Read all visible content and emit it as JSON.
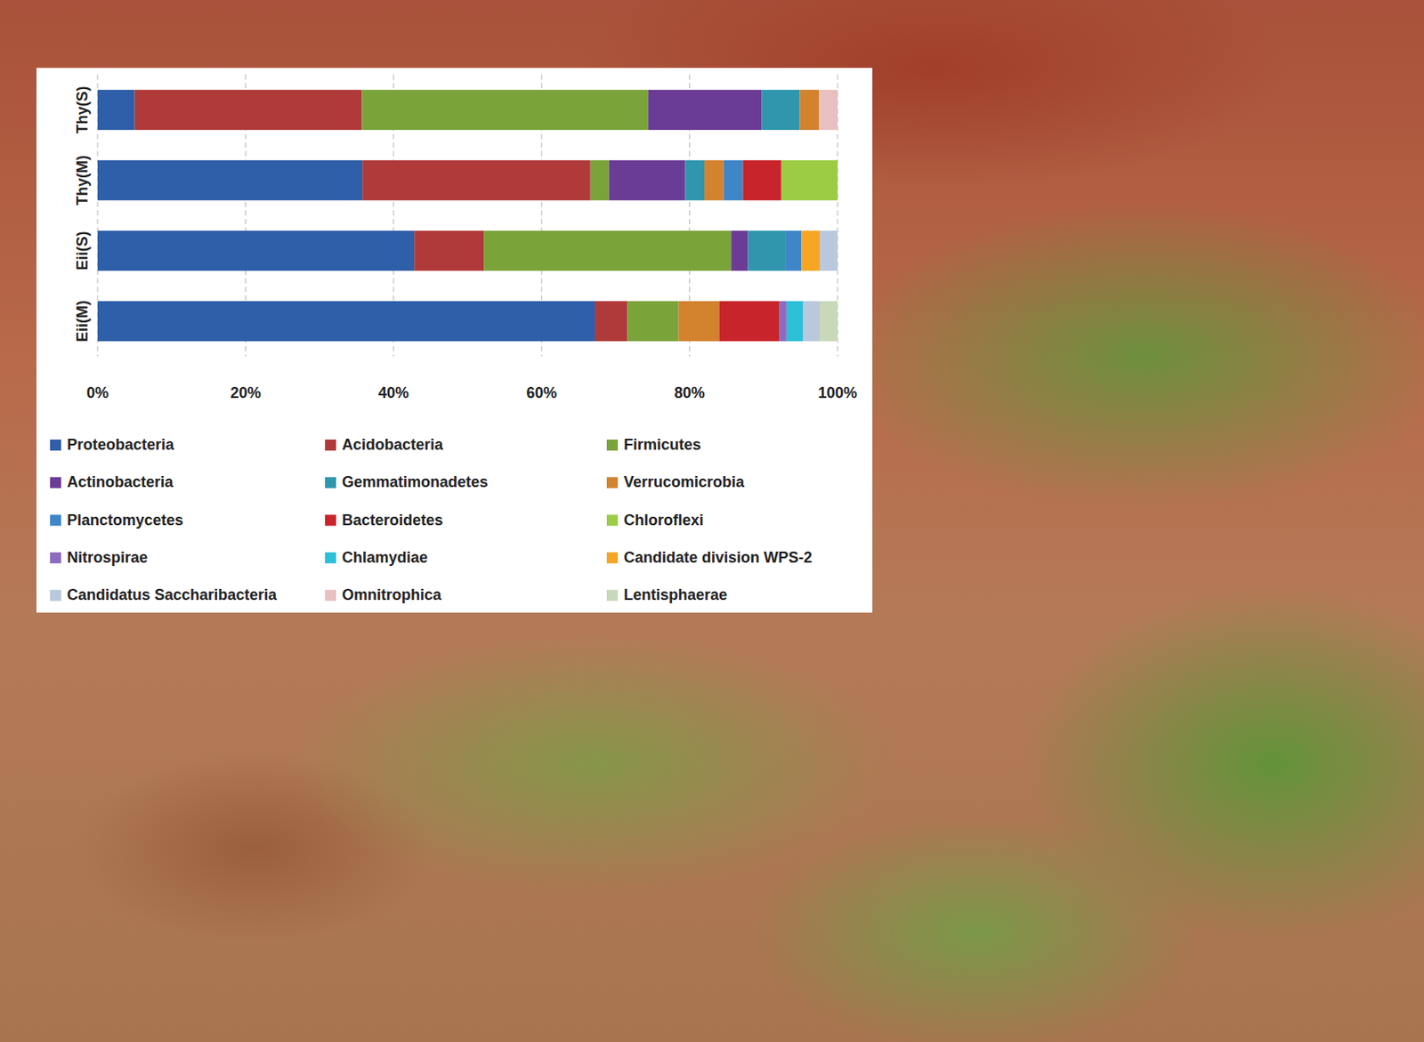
{
  "chart_data": {
    "type": "bar",
    "orientation": "horizontal",
    "stacked": true,
    "grid": true,
    "legend": "bottom",
    "categories": [
      "Thy(S)",
      "Thy(M)",
      "Eii(S)",
      "Eii(M)"
    ],
    "xlim": [
      0,
      100
    ],
    "xticks": [
      {
        "value": 0,
        "label": "0%"
      },
      {
        "value": 20,
        "label": "20%"
      },
      {
        "value": 40,
        "label": "40%"
      },
      {
        "value": 60,
        "label": "60%"
      },
      {
        "value": 80,
        "label": "80%"
      },
      {
        "value": 100,
        "label": "100%"
      }
    ],
    "series": [
      {
        "name": "Proteobacteria",
        "color": "#2e5fa8",
        "values": [
          5.0,
          35.8,
          42.8,
          67.2
        ]
      },
      {
        "name": "Acidobacteria",
        "color": "#b03a3a",
        "values": [
          30.7,
          30.8,
          9.4,
          4.4
        ]
      },
      {
        "name": "Firmicutes",
        "color": "#7aa339",
        "values": [
          38.7,
          2.5,
          33.4,
          6.9
        ]
      },
      {
        "name": "Actinobacteria",
        "color": "#6b3c96",
        "values": [
          15.3,
          10.3,
          2.3,
          0
        ]
      },
      {
        "name": "Gemmatimonadetes",
        "color": "#2f96ad",
        "values": [
          5.2,
          2.6,
          5.0,
          0
        ]
      },
      {
        "name": "Verrucomicrobia",
        "color": "#d3822e",
        "values": [
          2.6,
          2.6,
          0,
          5.5
        ]
      },
      {
        "name": "Planctomycetes",
        "color": "#3f86c9",
        "values": [
          0,
          2.6,
          2.2,
          0
        ]
      },
      {
        "name": "Bacteroidetes",
        "color": "#c8242b",
        "values": [
          0,
          5.2,
          0,
          8.1
        ]
      },
      {
        "name": "Chloroflexi",
        "color": "#9bcc44",
        "values": [
          0,
          7.6,
          0,
          0
        ]
      },
      {
        "name": "Nitrospirae",
        "color": "#8c6cc0",
        "values": [
          0,
          0,
          0,
          1.0
        ]
      },
      {
        "name": "Chlamydiae",
        "color": "#2cc0d8",
        "values": [
          0,
          0,
          0,
          2.2
        ]
      },
      {
        "name": "Candidate division WPS-2",
        "color": "#f6a623",
        "values": [
          0,
          0,
          2.5,
          0
        ]
      },
      {
        "name": "Candidatus Saccharibacteria",
        "color": "#b9c8dc",
        "values": [
          0,
          0,
          2.4,
          2.3
        ]
      },
      {
        "name": "Omnitrophica",
        "color": "#e8c0c0",
        "values": [
          2.5,
          0,
          0,
          0
        ]
      },
      {
        "name": "Lentisphaerae",
        "color": "#c8d8b8",
        "values": [
          0,
          0,
          0,
          2.4
        ]
      }
    ]
  }
}
